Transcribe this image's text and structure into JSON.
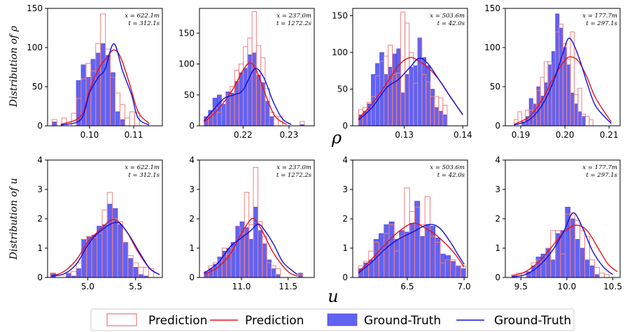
{
  "figure": {
    "row_ylabels": [
      "Distribution of ρ",
      "Distribution of u"
    ],
    "row_xlabels": [
      "ρ",
      "u"
    ]
  },
  "legend": {
    "position": "bottom-center",
    "items": [
      {
        "label": "Prediction",
        "kind": "hist",
        "color": "#f08080"
      },
      {
        "label": "Prediction",
        "kind": "line",
        "color": "#e8101a"
      },
      {
        "label": "Ground-Truth",
        "kind": "hist",
        "color": "#5a5af0"
      },
      {
        "label": "Ground-Truth",
        "kind": "line",
        "color": "#1010dd"
      }
    ]
  },
  "colors": {
    "pred_hist_edge": "#f08080",
    "pred_line": "#e8101a",
    "gt_hist_fill": "#6262f2",
    "gt_hist_edge": "#3b3bc4",
    "gt_line": "#1010dd"
  },
  "chart_data": [
    {
      "type": "bar",
      "row": 0,
      "col": 0,
      "annotation": [
        "x = 622.1m",
        "t = 312.1s"
      ],
      "xlim": [
        0.0905,
        0.1165
      ],
      "ylim": [
        0,
        150
      ],
      "xticks": [
        0.1,
        0.11
      ],
      "xticklabels": [
        "0.10",
        "0.11"
      ],
      "yticks": [
        0,
        50,
        100,
        150
      ],
      "bins": {
        "start": 0.0915,
        "width": 0.0011
      },
      "prediction_counts": [
        8,
        0,
        10,
        0,
        16,
        35,
        60,
        80,
        70,
        105,
        143,
        98,
        62,
        42,
        27,
        10,
        18,
        17
      ],
      "ground_truth_counts": [
        5,
        0,
        0,
        0,
        0,
        58,
        78,
        62,
        85,
        93,
        105,
        90,
        68,
        18,
        8,
        0,
        0,
        0
      ],
      "prediction_kde": {
        "x": [
          0.0935,
          0.098,
          0.1,
          0.102,
          0.104,
          0.1055,
          0.107,
          0.109,
          0.111,
          0.1135
        ],
        "y": [
          2,
          12,
          45,
          72,
          88,
          97,
          88,
          55,
          18,
          3
        ]
      },
      "ground_truth_kde": {
        "x": [
          0.0935,
          0.098,
          0.1,
          0.102,
          0.1035,
          0.1055,
          0.1075,
          0.1095,
          0.111,
          0.1135
        ],
        "y": [
          1,
          8,
          42,
          62,
          72,
          105,
          70,
          40,
          10,
          1
        ]
      }
    },
    {
      "type": "bar",
      "row": 0,
      "col": 1,
      "annotation": [
        "x = 237.0m",
        "t = 1272.2s"
      ],
      "xlim": [
        0.2105,
        0.2355
      ],
      "ylim": [
        0,
        190
      ],
      "xticks": [
        0.22,
        0.23
      ],
      "xticklabels": [
        "0.22",
        "0.23"
      ],
      "yticks": [
        0,
        50,
        100,
        150
      ],
      "bins": {
        "start": 0.2115,
        "width": 0.00095
      },
      "prediction_counts": [
        12,
        17,
        30,
        22,
        40,
        50,
        64,
        90,
        100,
        128,
        142,
        185,
        130,
        110,
        60,
        22,
        15,
        15,
        0,
        0,
        0,
        0,
        7
      ],
      "ground_truth_counts": [
        15,
        25,
        45,
        50,
        35,
        55,
        53,
        72,
        86,
        93,
        115,
        118,
        82,
        70,
        40,
        15,
        0,
        0,
        0,
        0,
        0,
        0,
        2
      ],
      "prediction_kde": {
        "x": [
          0.2115,
          0.214,
          0.216,
          0.218,
          0.22,
          0.2215,
          0.223,
          0.225,
          0.227,
          0.2295
        ],
        "y": [
          6,
          22,
          40,
          62,
          90,
          102,
          88,
          48,
          15,
          2
        ]
      },
      "ground_truth_kde": {
        "x": [
          0.2115,
          0.214,
          0.216,
          0.218,
          0.22,
          0.2225,
          0.2245,
          0.2265,
          0.2285,
          0.2305
        ],
        "y": [
          8,
          30,
          45,
          50,
          58,
          92,
          78,
          40,
          12,
          2
        ]
      }
    },
    {
      "type": "bar",
      "row": 0,
      "col": 2,
      "annotation": [
        "x = 503.6m",
        "t = 42.0s"
      ],
      "xlim": [
        0.1212,
        0.1408
      ],
      "ylim": [
        0,
        160
      ],
      "xticks": [
        0.13,
        0.14
      ],
      "xticklabels": [
        "0.13",
        "0.14"
      ],
      "yticks": [
        0,
        50,
        100,
        150
      ],
      "bins": {
        "start": 0.1222,
        "width": 0.00072
      },
      "prediction_counts": [
        22,
        25,
        32,
        40,
        68,
        88,
        95,
        110,
        70,
        72,
        155,
        140,
        100,
        58,
        120,
        70,
        60,
        40,
        40,
        38,
        28
      ],
      "ground_truth_counts": [
        15,
        20,
        30,
        70,
        85,
        100,
        70,
        80,
        98,
        105,
        45,
        70,
        80,
        82,
        120,
        93,
        82,
        50,
        25,
        20,
        15
      ],
      "prediction_kde": {
        "x": [
          0.1222,
          0.1245,
          0.127,
          0.129,
          0.131,
          0.1325,
          0.134,
          0.136,
          0.138,
          0.14
        ],
        "y": [
          10,
          30,
          58,
          82,
          93,
          88,
          80,
          62,
          38,
          15
        ]
      },
      "ground_truth_kde": {
        "x": [
          0.1222,
          0.1245,
          0.127,
          0.129,
          0.131,
          0.1325,
          0.134,
          0.136,
          0.138,
          0.14
        ],
        "y": [
          8,
          25,
          52,
          63,
          80,
          92,
          85,
          62,
          38,
          15
        ]
      }
    },
    {
      "type": "bar",
      "row": 0,
      "col": 3,
      "annotation": [
        "x = 177.7m",
        "t = 297.1s"
      ],
      "xlim": [
        0.1865,
        0.2125
      ],
      "ylim": [
        0,
        150
      ],
      "xticks": [
        0.19,
        0.2,
        0.21
      ],
      "xticklabels": [
        "0.19",
        "0.20",
        "0.21"
      ],
      "yticks": [
        0,
        50,
        100,
        150
      ],
      "bins": {
        "start": 0.1885,
        "width": 0.00085
      },
      "prediction_counts": [
        8,
        18,
        0,
        20,
        20,
        28,
        45,
        62,
        82,
        82,
        60,
        120,
        130,
        105,
        85,
        120,
        40,
        48,
        15,
        12,
        8
      ],
      "ground_truth_counts": [
        0,
        0,
        5,
        12,
        35,
        28,
        50,
        38,
        55,
        78,
        95,
        143,
        125,
        100,
        78,
        42,
        28,
        18,
        12,
        0,
        0
      ],
      "prediction_kde": {
        "x": [
          0.1885,
          0.192,
          0.195,
          0.1975,
          0.1995,
          0.201,
          0.203,
          0.205,
          0.207,
          0.2105
        ],
        "y": [
          2,
          12,
          35,
          62,
          80,
          88,
          83,
          62,
          35,
          5
        ]
      },
      "ground_truth_kde": {
        "x": [
          0.1885,
          0.192,
          0.195,
          0.1975,
          0.1995,
          0.201,
          0.203,
          0.205,
          0.207,
          0.2105
        ],
        "y": [
          1,
          8,
          28,
          58,
          92,
          112,
          90,
          55,
          25,
          3
        ]
      }
    },
    {
      "type": "bar",
      "row": 1,
      "col": 0,
      "annotation": [
        "x = 622.1m",
        "t = 312.1s"
      ],
      "xlim": [
        4.58,
        5.78
      ],
      "ylim": [
        0,
        4
      ],
      "xticks": [
        5.0,
        5.5
      ],
      "xticklabels": [
        "5.0",
        "5.5"
      ],
      "yticks": [
        0,
        1,
        2,
        3,
        4
      ],
      "bins": {
        "start": 4.61,
        "width": 0.054
      },
      "prediction_counts": [
        0.15,
        0,
        0,
        0.15,
        0.2,
        0.5,
        1.3,
        1.4,
        1.35,
        1.5,
        2.3,
        2.9,
        2.0,
        1.9,
        1.2,
        0.75,
        0.5,
        0.35,
        0.35,
        0.3
      ],
      "ground_truth_counts": [
        0.15,
        0,
        0,
        0.15,
        0.05,
        0.3,
        1.3,
        1.4,
        1.45,
        1.75,
        1.8,
        2.5,
        2.35,
        1.8,
        1.2,
        0.65,
        0.35,
        0.1,
        0.05,
        0
      ],
      "prediction_kde": {
        "x": [
          4.62,
          4.75,
          4.88,
          5.0,
          5.12,
          5.27,
          5.4,
          5.52,
          5.65,
          5.75
        ],
        "y": [
          0.05,
          0.2,
          0.6,
          1.2,
          1.6,
          1.98,
          1.6,
          0.9,
          0.3,
          0.1
        ]
      },
      "ground_truth_kde": {
        "x": [
          4.62,
          4.75,
          4.88,
          5.0,
          5.12,
          5.3,
          5.42,
          5.55,
          5.65,
          5.75
        ],
        "y": [
          0.05,
          0.12,
          0.45,
          1.1,
          1.55,
          1.88,
          1.5,
          0.8,
          0.3,
          0.1
        ]
      }
    },
    {
      "type": "bar",
      "row": 1,
      "col": 1,
      "annotation": [
        "x = 237.0m",
        "t = 1272.2s"
      ],
      "xlim": [
        10.55,
        11.78
      ],
      "ylim": [
        0,
        4
      ],
      "xticks": [
        11.0,
        11.5
      ],
      "xticklabels": [
        "11.0",
        "11.5"
      ],
      "yticks": [
        0,
        1,
        2,
        3,
        4
      ],
      "bins": {
        "start": 10.6,
        "width": 0.048
      },
      "prediction_counts": [
        0.2,
        0.4,
        0.5,
        0.6,
        1.0,
        0.8,
        1.0,
        1.75,
        1.5,
        2.9,
        1.8,
        3.75,
        1.9,
        1.4,
        0.5,
        0.4,
        0.3,
        0,
        0,
        0,
        0,
        0.1
      ],
      "ground_truth_counts": [
        0.2,
        0.3,
        0.45,
        0.7,
        0.9,
        1.0,
        1.2,
        1.75,
        1.9,
        1.7,
        1.3,
        2.4,
        1.6,
        1.15,
        0.6,
        0.3,
        0.1,
        0,
        0,
        0,
        0,
        0.15
      ],
      "prediction_kde": {
        "x": [
          10.6,
          10.75,
          10.88,
          11.0,
          11.1,
          11.15,
          11.22,
          11.35,
          11.5,
          11.6
        ],
        "y": [
          0.1,
          0.35,
          0.8,
          1.5,
          1.98,
          1.95,
          1.6,
          0.8,
          0.2,
          0.05
        ]
      },
      "ground_truth_kde": {
        "x": [
          10.6,
          10.75,
          10.88,
          11.0,
          11.1,
          11.18,
          11.25,
          11.35,
          11.45,
          11.6
        ],
        "y": [
          0.15,
          0.5,
          1.05,
          1.35,
          1.6,
          1.82,
          1.6,
          1.1,
          0.5,
          0.1
        ]
      }
    },
    {
      "type": "bar",
      "row": 1,
      "col": 2,
      "annotation": [
        "x = 503.6m",
        "t = 42.0s"
      ],
      "xlim": [
        6.02,
        7.03
      ],
      "ylim": [
        0,
        4
      ],
      "xticks": [
        6.5,
        7.0
      ],
      "xticklabels": [
        "6.5",
        "7.0"
      ],
      "yticks": [
        0,
        1,
        2,
        3,
        4
      ],
      "bins": {
        "start": 6.07,
        "width": 0.045
      },
      "prediction_counts": [
        0.4,
        0.55,
        0.9,
        1.2,
        0.9,
        1.5,
        1.8,
        0.9,
        1.4,
        3.05,
        2.25,
        2.4,
        1.8,
        2.75,
        1.4,
        1.2,
        0.5,
        0.6,
        0.6,
        0.4,
        0.4
      ],
      "ground_truth_counts": [
        0.3,
        0.5,
        0.6,
        1.3,
        1.5,
        1.8,
        1.9,
        1.3,
        1.6,
        1.55,
        1.85,
        2.6,
        1.4,
        1.8,
        1.75,
        1.35,
        0.8,
        0.75,
        0.55,
        0.4,
        0.3
      ],
      "prediction_kde": {
        "x": [
          6.07,
          6.18,
          6.3,
          6.42,
          6.55,
          6.65,
          6.75,
          6.85,
          6.93,
          7.0
        ],
        "y": [
          0.2,
          0.6,
          1.1,
          1.55,
          1.85,
          1.7,
          1.45,
          1.1,
          0.75,
          0.35
        ]
      },
      "ground_truth_kde": {
        "x": [
          6.07,
          6.18,
          6.3,
          6.42,
          6.55,
          6.68,
          6.78,
          6.88,
          6.95,
          7.0
        ],
        "y": [
          0.15,
          0.5,
          0.95,
          1.3,
          1.55,
          1.8,
          1.7,
          1.2,
          0.75,
          0.45
        ]
      }
    },
    {
      "type": "bar",
      "row": 1,
      "col": 3,
      "annotation": [
        "x = 177.7m",
        "t = 297.1s"
      ],
      "xlim": [
        9.33,
        10.58
      ],
      "ylim": [
        0,
        4
      ],
      "xticks": [
        9.5,
        10.0,
        10.5
      ],
      "xticklabels": [
        "9.5",
        "10.0",
        "10.5"
      ],
      "yticks": [
        0,
        1,
        2,
        3,
        4
      ],
      "bins": {
        "start": 9.4,
        "width": 0.053
      },
      "prediction_counts": [
        0.1,
        0.15,
        0.15,
        0,
        0.5,
        0.6,
        0.5,
        1.0,
        1.6,
        1.6,
        0.8,
        2.15,
        2.2,
        1.95,
        1.6,
        1.4,
        0.6,
        0.35,
        0.15,
        0.1
      ],
      "ground_truth_counts": [
        0,
        0,
        0,
        0.2,
        0.4,
        0.7,
        0.8,
        1.0,
        0.6,
        1.5,
        1.6,
        2.4,
        2.0,
        1.3,
        1.0,
        0.6,
        0.4,
        0.1,
        0,
        0
      ],
      "prediction_kde": {
        "x": [
          9.4,
          9.55,
          9.7,
          9.85,
          9.97,
          10.1,
          10.22,
          10.35,
          10.45,
          10.55
        ],
        "y": [
          0.05,
          0.2,
          0.55,
          1.1,
          1.55,
          1.78,
          1.6,
          0.95,
          0.45,
          0.2
        ]
      },
      "ground_truth_kde": {
        "x": [
          9.4,
          9.55,
          9.7,
          9.85,
          9.97,
          10.07,
          10.17,
          10.28,
          10.4,
          10.5
        ],
        "y": [
          0.02,
          0.1,
          0.4,
          0.95,
          1.6,
          2.2,
          1.7,
          0.9,
          0.35,
          0.1
        ]
      }
    }
  ]
}
